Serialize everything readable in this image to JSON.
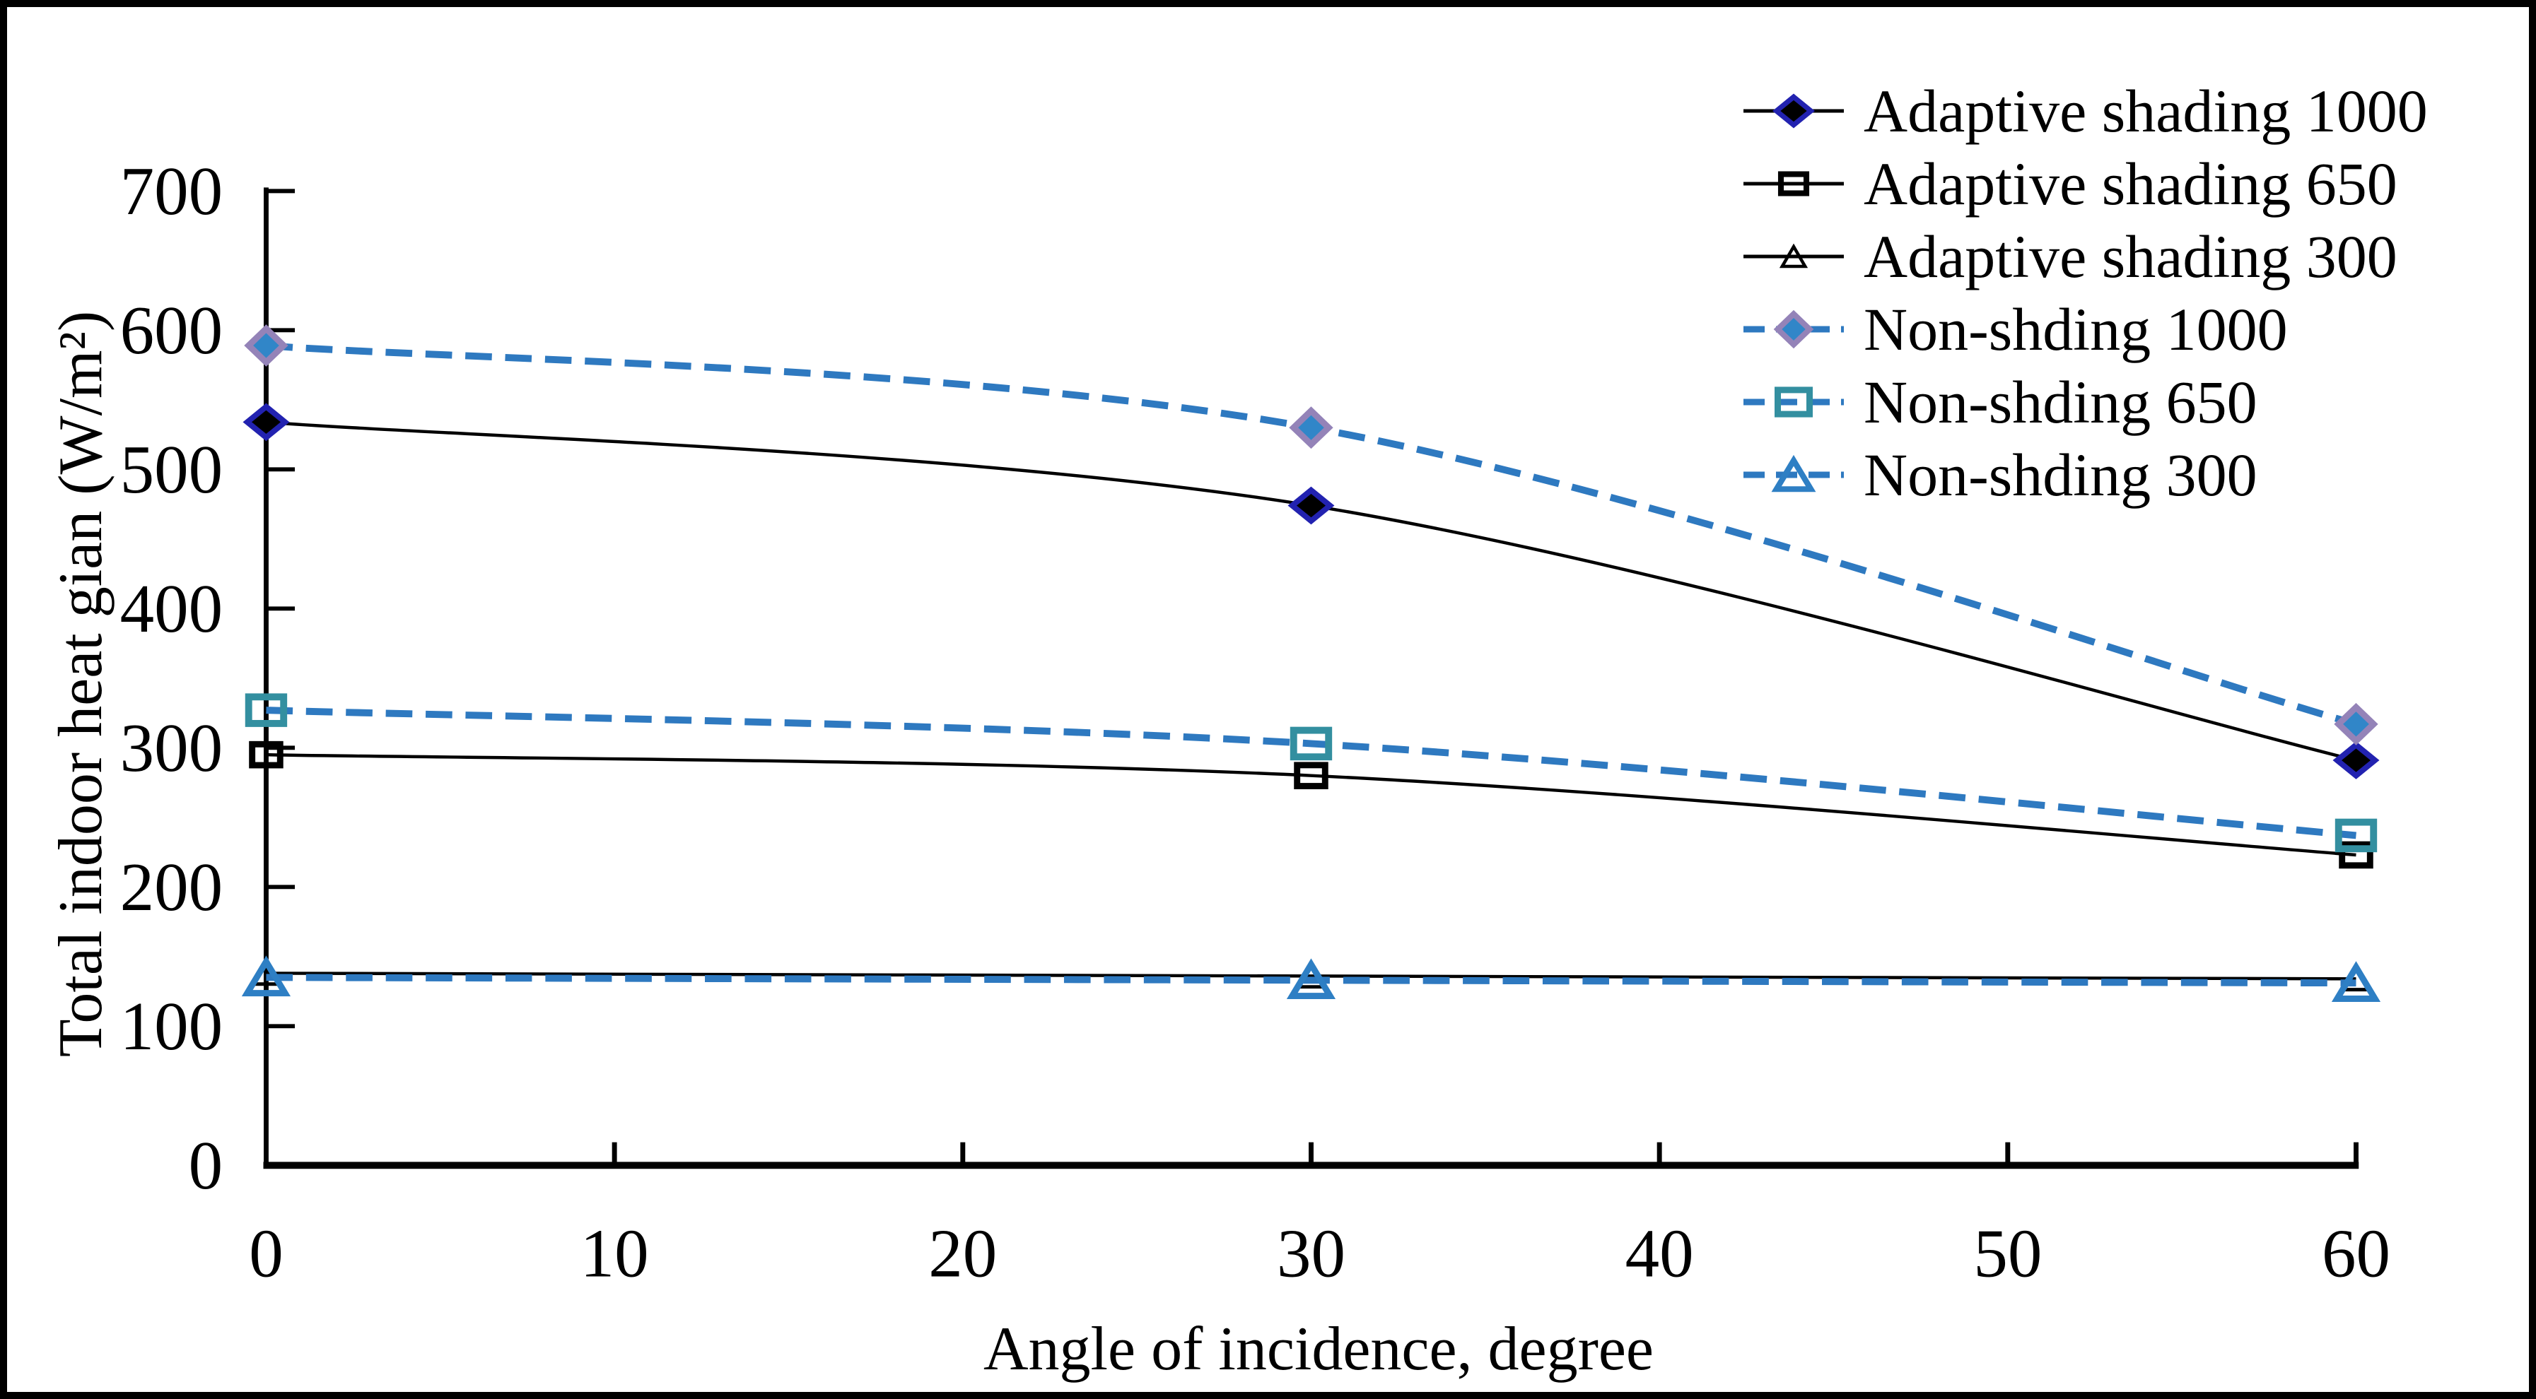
{
  "figure": {
    "background": "#ffffff",
    "border_color": "#000000"
  },
  "chart_data": {
    "type": "line",
    "title": "",
    "xlabel": "Angle of incidence, degree",
    "ylabel": "Total indoor heat gian (W/m²)",
    "x": [
      0,
      30,
      60
    ],
    "x_ticks": [
      0,
      10,
      20,
      30,
      40,
      50,
      60
    ],
    "y_ticks": [
      0,
      100,
      200,
      300,
      400,
      500,
      600,
      700
    ],
    "xlim": [
      0,
      60
    ],
    "ylim": [
      0,
      700
    ],
    "grid": false,
    "legend_position": "top-right",
    "axis_color": "#000000",
    "dash_color": "#2E79C0",
    "series": [
      {
        "name": "Adaptive shading 1000",
        "values": [
          534,
          474,
          291
        ],
        "line": "solid",
        "line_color": "#000000",
        "marker": "diamond",
        "marker_fill": "#000000",
        "marker_stroke": "#2222B0"
      },
      {
        "name": "Adaptive shading 650",
        "values": [
          295,
          280,
          223
        ],
        "line": "solid",
        "line_color": "#000000",
        "marker": "square",
        "marker_fill": "none",
        "marker_stroke": "#000000"
      },
      {
        "name": "Adaptive shading 300",
        "values": [
          138,
          136,
          134
        ],
        "line": "solid",
        "line_color": "#000000",
        "marker": "triangle",
        "marker_fill": "none",
        "marker_stroke": "#000000"
      },
      {
        "name": "Non-shding 1000",
        "values": [
          589,
          530,
          317
        ],
        "line": "dashed",
        "line_color": "#2E79C0",
        "marker": "diamond",
        "marker_fill": "#3186C8",
        "marker_stroke": "#9483B8"
      },
      {
        "name": "Non-shding 650",
        "values": [
          327,
          303,
          237
        ],
        "line": "dashed",
        "line_color": "#2E79C0",
        "marker": "square",
        "marker_fill": "none",
        "marker_stroke": "#338FA0"
      },
      {
        "name": "Non-shding 300",
        "values": [
          135,
          133,
          131
        ],
        "line": "dashed",
        "line_color": "#2E79C0",
        "marker": "triangle",
        "marker_fill": "none",
        "marker_stroke": "#2E7FC4"
      }
    ]
  }
}
